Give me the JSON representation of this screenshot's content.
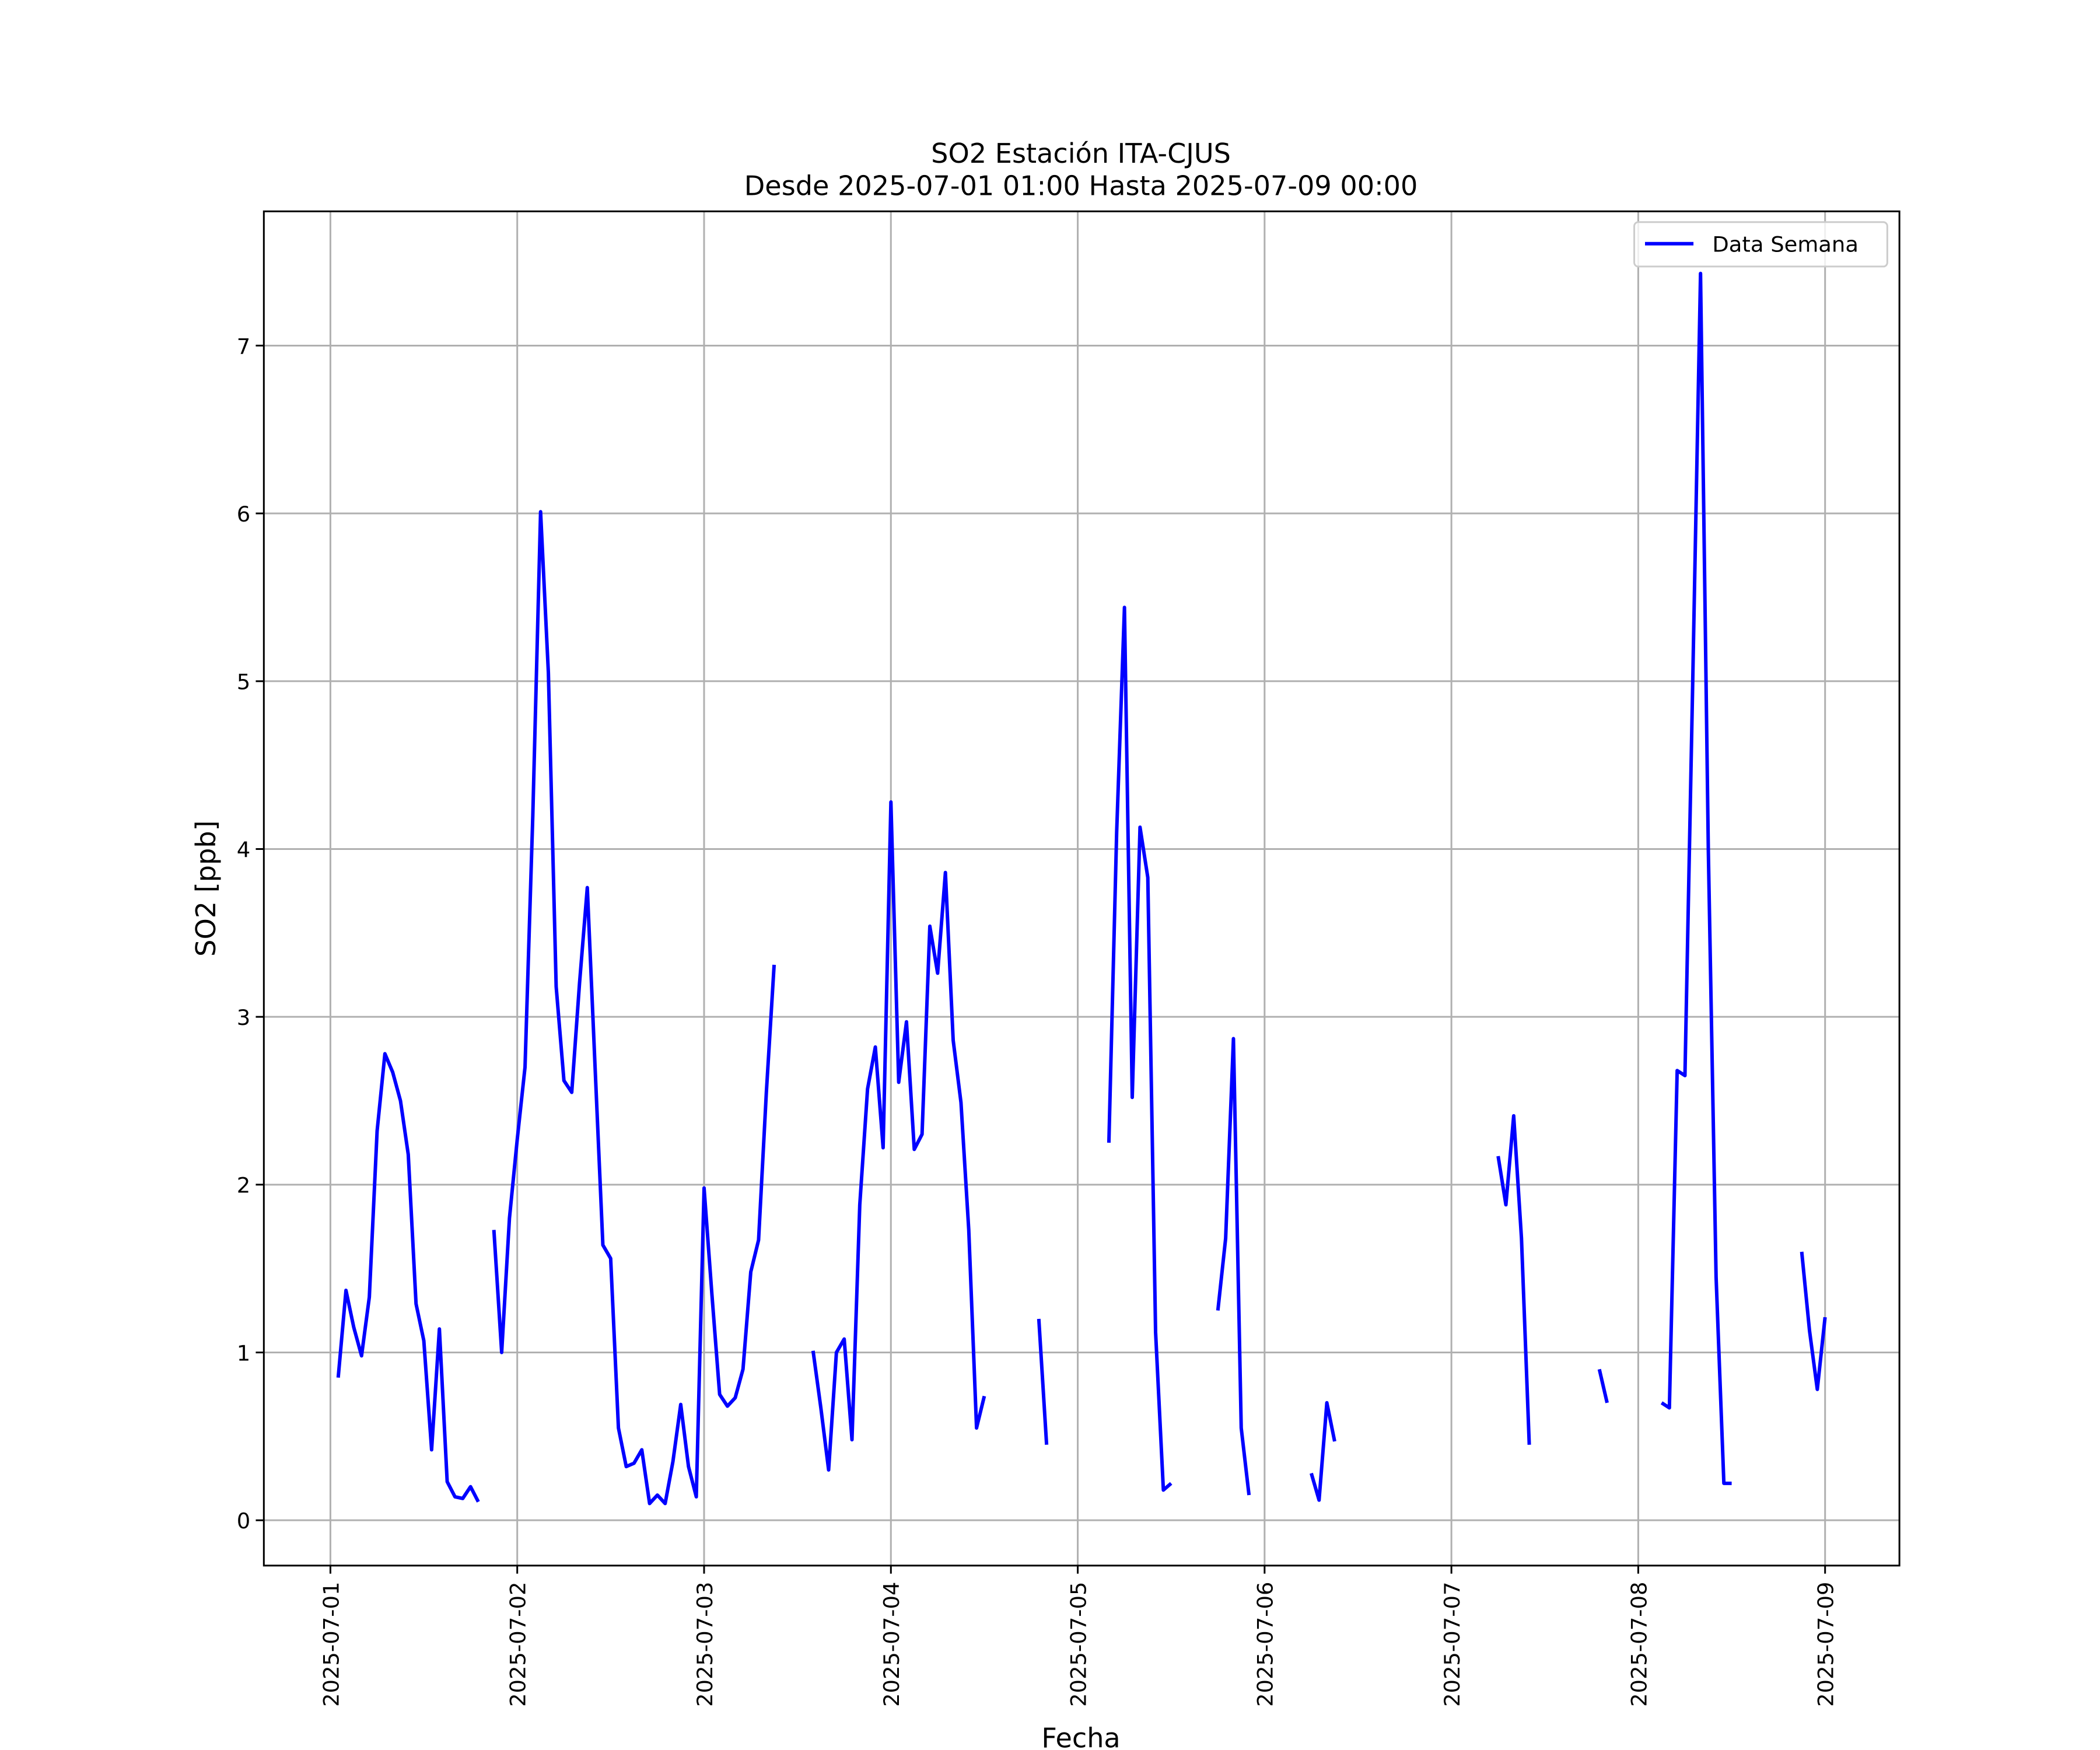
{
  "chart_data": {
    "type": "line",
    "title": "SO2 Estación ITA-CJUS",
    "subtitle": "Desde 2025-07-01 01:00 Hasta 2025-07-09 00:00",
    "x_label": "Fecha",
    "y_label": "SO2 [ppb]",
    "x": [
      "2025-07-01 01:00",
      "2025-07-01 02:00",
      "2025-07-01 03:00",
      "2025-07-01 04:00",
      "2025-07-01 05:00",
      "2025-07-01 06:00",
      "2025-07-01 07:00",
      "2025-07-01 08:00",
      "2025-07-01 09:00",
      "2025-07-01 10:00",
      "2025-07-01 11:00",
      "2025-07-01 12:00",
      "2025-07-01 13:00",
      "2025-07-01 14:00",
      "2025-07-01 15:00",
      "2025-07-01 16:00",
      "2025-07-01 17:00",
      "2025-07-01 18:00",
      "2025-07-01 19:00",
      "2025-07-01 20:00",
      "2025-07-01 21:00",
      "2025-07-01 22:00",
      "2025-07-01 23:00",
      "2025-07-02 00:00",
      "2025-07-02 01:00",
      "2025-07-02 02:00",
      "2025-07-02 03:00",
      "2025-07-02 04:00",
      "2025-07-02 05:00",
      "2025-07-02 06:00",
      "2025-07-02 07:00",
      "2025-07-02 08:00",
      "2025-07-02 09:00",
      "2025-07-02 10:00",
      "2025-07-02 11:00",
      "2025-07-02 12:00",
      "2025-07-02 13:00",
      "2025-07-02 14:00",
      "2025-07-02 15:00",
      "2025-07-02 16:00",
      "2025-07-02 17:00",
      "2025-07-02 18:00",
      "2025-07-02 19:00",
      "2025-07-02 20:00",
      "2025-07-02 21:00",
      "2025-07-02 22:00",
      "2025-07-02 23:00",
      "2025-07-03 00:00",
      "2025-07-03 01:00",
      "2025-07-03 02:00",
      "2025-07-03 03:00",
      "2025-07-03 04:00",
      "2025-07-03 05:00",
      "2025-07-03 06:00",
      "2025-07-03 07:00",
      "2025-07-03 08:00",
      "2025-07-03 09:00",
      "2025-07-03 10:00",
      "2025-07-03 11:00",
      "2025-07-03 12:00",
      "2025-07-03 13:00",
      "2025-07-03 14:00",
      "2025-07-03 15:00",
      "2025-07-03 16:00",
      "2025-07-03 17:00",
      "2025-07-03 18:00",
      "2025-07-03 19:00",
      "2025-07-03 20:00",
      "2025-07-03 21:00",
      "2025-07-03 22:00",
      "2025-07-03 23:00",
      "2025-07-04 00:00",
      "2025-07-04 01:00",
      "2025-07-04 02:00",
      "2025-07-04 03:00",
      "2025-07-04 04:00",
      "2025-07-04 05:00",
      "2025-07-04 06:00",
      "2025-07-04 07:00",
      "2025-07-04 08:00",
      "2025-07-04 09:00",
      "2025-07-04 10:00",
      "2025-07-04 11:00",
      "2025-07-04 12:00",
      "2025-07-04 13:00",
      "2025-07-04 14:00",
      "2025-07-04 15:00",
      "2025-07-04 16:00",
      "2025-07-04 17:00",
      "2025-07-04 18:00",
      "2025-07-04 19:00",
      "2025-07-04 20:00",
      "2025-07-04 21:00",
      "2025-07-04 22:00",
      "2025-07-04 23:00",
      "2025-07-05 00:00",
      "2025-07-05 01:00",
      "2025-07-05 02:00",
      "2025-07-05 03:00",
      "2025-07-05 04:00",
      "2025-07-05 05:00",
      "2025-07-05 06:00",
      "2025-07-05 07:00",
      "2025-07-05 08:00",
      "2025-07-05 09:00",
      "2025-07-05 10:00",
      "2025-07-05 11:00",
      "2025-07-05 12:00",
      "2025-07-05 13:00",
      "2025-07-05 14:00",
      "2025-07-05 15:00",
      "2025-07-05 16:00",
      "2025-07-05 17:00",
      "2025-07-05 18:00",
      "2025-07-05 19:00",
      "2025-07-05 20:00",
      "2025-07-05 21:00",
      "2025-07-05 22:00",
      "2025-07-05 23:00",
      "2025-07-06 00:00",
      "2025-07-06 01:00",
      "2025-07-06 02:00",
      "2025-07-06 03:00",
      "2025-07-06 04:00",
      "2025-07-06 05:00",
      "2025-07-06 06:00",
      "2025-07-06 07:00",
      "2025-07-06 08:00",
      "2025-07-06 09:00",
      "2025-07-06 10:00",
      "2025-07-06 11:00",
      "2025-07-06 12:00",
      "2025-07-06 13:00",
      "2025-07-06 14:00",
      "2025-07-06 15:00",
      "2025-07-06 16:00",
      "2025-07-06 17:00",
      "2025-07-06 18:00",
      "2025-07-06 19:00",
      "2025-07-06 20:00",
      "2025-07-06 21:00",
      "2025-07-06 22:00",
      "2025-07-06 23:00",
      "2025-07-07 00:00",
      "2025-07-07 01:00",
      "2025-07-07 02:00",
      "2025-07-07 03:00",
      "2025-07-07 04:00",
      "2025-07-07 05:00",
      "2025-07-07 06:00",
      "2025-07-07 07:00",
      "2025-07-07 08:00",
      "2025-07-07 09:00",
      "2025-07-07 10:00",
      "2025-07-07 11:00",
      "2025-07-07 12:00",
      "2025-07-07 13:00",
      "2025-07-07 14:00",
      "2025-07-07 15:00",
      "2025-07-07 16:00",
      "2025-07-07 17:00",
      "2025-07-07 18:00",
      "2025-07-07 19:00",
      "2025-07-07 20:00",
      "2025-07-07 21:00",
      "2025-07-07 22:00",
      "2025-07-07 23:00",
      "2025-07-08 00:00",
      "2025-07-08 01:00",
      "2025-07-08 02:00",
      "2025-07-08 03:00",
      "2025-07-08 04:00",
      "2025-07-08 05:00",
      "2025-07-08 06:00",
      "2025-07-08 07:00",
      "2025-07-08 08:00",
      "2025-07-08 09:00",
      "2025-07-08 10:00",
      "2025-07-08 11:00",
      "2025-07-08 12:00",
      "2025-07-08 13:00",
      "2025-07-08 14:00",
      "2025-07-08 15:00",
      "2025-07-08 16:00",
      "2025-07-08 17:00",
      "2025-07-08 18:00",
      "2025-07-08 19:00",
      "2025-07-08 20:00",
      "2025-07-08 21:00",
      "2025-07-08 22:00",
      "2025-07-08 23:00",
      "2025-07-09 00:00"
    ],
    "series": [
      {
        "name": "Data Semana",
        "color": "#0000ff",
        "values": [
          0.85,
          1.37,
          1.15,
          0.98,
          1.33,
          2.32,
          2.78,
          2.67,
          2.5,
          2.18,
          1.29,
          1.07,
          0.42,
          1.14,
          0.23,
          0.14,
          0.13,
          0.2,
          0.11,
          null,
          1.73,
          1.0,
          1.8,
          2.27,
          2.7,
          4.2,
          6.01,
          5.05,
          3.18,
          2.62,
          2.55,
          3.2,
          3.77,
          2.7,
          1.64,
          1.56,
          0.55,
          0.32,
          0.34,
          0.42,
          0.1,
          0.15,
          0.1,
          0.35,
          0.69,
          0.32,
          0.14,
          1.98,
          1.35,
          0.75,
          0.68,
          0.73,
          0.9,
          1.48,
          1.67,
          2.55,
          3.31,
          null,
          null,
          null,
          null,
          1.01,
          0.67,
          0.3,
          1.0,
          1.08,
          0.48,
          1.88,
          2.57,
          2.82,
          2.22,
          4.28,
          2.61,
          2.97,
          2.21,
          2.3,
          3.54,
          3.26,
          3.86,
          2.86,
          2.49,
          1.73,
          0.55,
          0.74,
          null,
          null,
          null,
          null,
          null,
          null,
          1.2,
          0.45,
          null,
          null,
          null,
          null,
          null,
          null,
          null,
          2.25,
          4.1,
          5.44,
          2.52,
          4.13,
          3.83,
          1.12,
          0.18,
          0.22,
          null,
          null,
          null,
          null,
          null,
          1.25,
          1.68,
          2.87,
          0.55,
          0.15,
          null,
          null,
          null,
          null,
          null,
          null,
          null,
          0.28,
          0.12,
          0.7,
          0.47,
          null,
          null,
          null,
          null,
          null,
          null,
          null,
          null,
          null,
          null,
          null,
          null,
          null,
          null,
          null,
          null,
          null,
          null,
          null,
          null,
          2.17,
          1.88,
          2.41,
          1.68,
          0.45,
          null,
          null,
          null,
          null,
          null,
          null,
          null,
          null,
          0.9,
          0.7,
          null,
          null,
          null,
          null,
          null,
          null,
          0.7,
          0.67,
          2.68,
          2.65,
          5.0,
          7.43,
          4.0,
          1.45,
          0.22,
          0.22,
          null,
          null,
          null,
          null,
          null,
          null,
          null,
          null,
          1.6,
          1.13,
          0.78,
          1.21
        ]
      }
    ],
    "xlim": [
      "2025-06-30 15:27",
      "2025-07-09 09:33"
    ],
    "xticks": [
      "2025-07-01",
      "2025-07-02",
      "2025-07-03",
      "2025-07-04",
      "2025-07-05",
      "2025-07-06",
      "2025-07-07",
      "2025-07-08",
      "2025-07-09"
    ],
    "ylim": [
      -0.27,
      7.8
    ],
    "yticks": [
      0,
      1,
      2,
      3,
      4,
      5,
      6,
      7
    ],
    "grid": true,
    "legend": "upper right"
  }
}
